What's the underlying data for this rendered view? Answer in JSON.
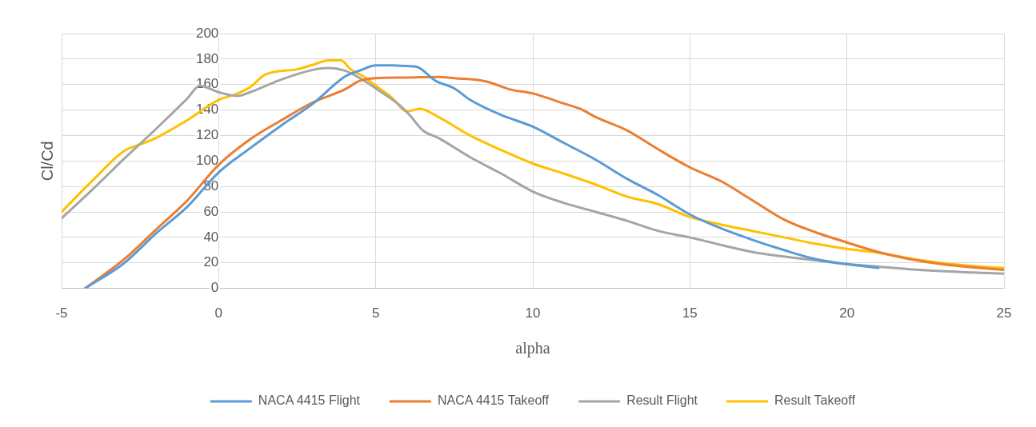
{
  "chart_data": {
    "type": "line",
    "xlabel": "alpha",
    "ylabel": "Cl/Cd",
    "xlim": [
      -5,
      25
    ],
    "xticks": [
      -5,
      0,
      5,
      10,
      15,
      20,
      25
    ],
    "ylim": [
      0,
      200
    ],
    "yticks": [
      0,
      20,
      40,
      60,
      80,
      100,
      120,
      140,
      160,
      180,
      200
    ],
    "grid": true,
    "legend": "bottom",
    "line_style": "solid",
    "series": [
      {
        "name": "NACA 4415 Flight",
        "color": "#5b9bd5",
        "x": [
          -4.25,
          -3,
          -2,
          -1,
          0,
          1,
          2,
          3,
          4,
          4.5,
          5,
          5.5,
          6,
          6.3,
          6.9,
          7.5,
          8,
          9,
          10,
          11,
          12,
          13,
          14,
          15,
          16,
          17,
          18,
          19,
          20,
          21
        ],
        "values": [
          0,
          20,
          43,
          64,
          91,
          110,
          128,
          145,
          166,
          171,
          175,
          175,
          174.5,
          174,
          163,
          157,
          148,
          136,
          127,
          114,
          101,
          86,
          73,
          58,
          47,
          38,
          30,
          23,
          19,
          16
        ]
      },
      {
        "name": "NACA 4415 Takeoff",
        "color": "#ed7d31",
        "x": [
          -4.25,
          -3,
          -2,
          -1,
          0,
          1,
          2,
          3,
          4,
          4.5,
          5,
          6,
          7,
          7.5,
          8.5,
          9.3,
          10,
          11,
          11.5,
          12,
          13,
          14,
          15,
          16,
          17,
          18,
          19,
          20,
          21,
          22,
          23,
          24,
          25
        ],
        "values": [
          0,
          23,
          46,
          69,
          97,
          117,
          132,
          146,
          156,
          163,
          165,
          165.5,
          166,
          165,
          162.5,
          156,
          153,
          145,
          141,
          134.5,
          124,
          109,
          95,
          84,
          69,
          54,
          44,
          36,
          28.5,
          23,
          19,
          16.5,
          14.5
        ]
      },
      {
        "name": "Result Flight",
        "color": "#a5a5a5",
        "x": [
          -5,
          -4,
          -3,
          -2,
          -1,
          -0.6,
          0,
          0.6,
          1,
          1.5,
          2,
          3,
          3.5,
          4,
          4.5,
          5,
          5.8,
          6.1,
          6.5,
          7,
          8,
          9,
          10,
          11,
          12,
          13,
          14,
          15,
          16,
          17,
          18,
          19,
          20,
          21,
          22,
          23,
          24,
          25
        ],
        "values": [
          55,
          78,
          102,
          125,
          149,
          159,
          154,
          151,
          154,
          159,
          164,
          171.5,
          173,
          171,
          165,
          157,
          143,
          135.5,
          124,
          118,
          103,
          90,
          76,
          67,
          60,
          53,
          45,
          40,
          34,
          28.5,
          25,
          22,
          19,
          17,
          15,
          13.5,
          12.5,
          11.5
        ]
      },
      {
        "name": "Result Takeoff",
        "color": "#ffc000",
        "x": [
          -5,
          -4,
          -3,
          -2.5,
          -2,
          -1,
          0,
          0.5,
          1,
          1.5,
          2.5,
          3,
          3.5,
          3.9,
          4.2,
          4.6,
          5,
          5.5,
          6,
          6.4,
          7,
          8,
          9,
          10,
          11,
          12,
          13,
          14,
          15,
          16,
          17,
          18,
          19,
          20,
          21,
          22,
          23,
          24,
          25
        ],
        "values": [
          60,
          85,
          108,
          113,
          118,
          132,
          148,
          152,
          158,
          168,
          172,
          175.5,
          179,
          179,
          172,
          166.5,
          159,
          150,
          139,
          141,
          134.5,
          120,
          108.5,
          98,
          90,
          81.5,
          72,
          66,
          56,
          50,
          45,
          40,
          35,
          31,
          28,
          23.5,
          20,
          17.5,
          16
        ]
      }
    ]
  }
}
